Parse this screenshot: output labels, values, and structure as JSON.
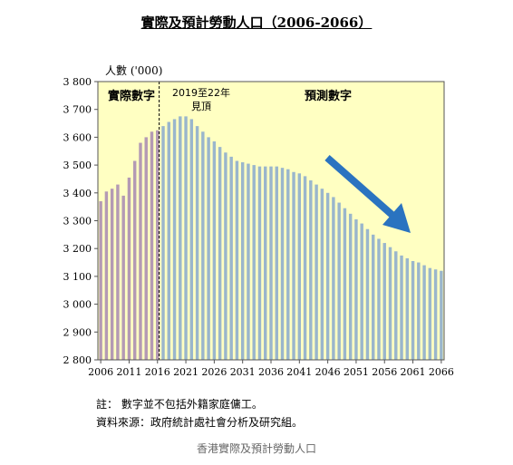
{
  "chart_data": {
    "type": "bar",
    "title": "實際及預計勞動人口（2006-2066）",
    "ylabel": "人數 ('000)",
    "ylim": [
      2800,
      3800
    ],
    "yticks": [
      2800,
      2900,
      3000,
      3100,
      3200,
      3300,
      3400,
      3500,
      3600,
      3700,
      3800
    ],
    "ytick_labels": [
      "2 800",
      "2 900",
      "3 000",
      "3 100",
      "3 200",
      "3 300",
      "3 400",
      "3 500",
      "3 600",
      "3 700",
      "3 800"
    ],
    "xticks": [
      "2006",
      "2011",
      "2016",
      "2021",
      "2026",
      "2031",
      "2036",
      "2041",
      "2046",
      "2051",
      "2056",
      "2061",
      "2066"
    ],
    "x": [
      2006,
      2007,
      2008,
      2009,
      2010,
      2011,
      2012,
      2013,
      2014,
      2015,
      2016,
      2017,
      2018,
      2019,
      2020,
      2021,
      2022,
      2023,
      2024,
      2025,
      2026,
      2027,
      2028,
      2029,
      2030,
      2031,
      2032,
      2033,
      2034,
      2035,
      2036,
      2037,
      2038,
      2039,
      2040,
      2041,
      2042,
      2043,
      2044,
      2045,
      2046,
      2047,
      2048,
      2049,
      2050,
      2051,
      2052,
      2053,
      2054,
      2055,
      2056,
      2057,
      2058,
      2059,
      2060,
      2061,
      2062,
      2063,
      2064,
      2065,
      2066
    ],
    "series": [
      {
        "name": "實際數字",
        "color": "#b49ab4",
        "x": [
          2006,
          2007,
          2008,
          2009,
          2010,
          2011,
          2012,
          2013,
          2014,
          2015,
          2016
        ],
        "values": [
          3370,
          3405,
          3415,
          3430,
          3390,
          3455,
          3515,
          3580,
          3600,
          3620,
          3625
        ]
      },
      {
        "name": "預測數字",
        "color": "#9ab6cc",
        "x": [
          2017,
          2018,
          2019,
          2020,
          2021,
          2022,
          2023,
          2024,
          2025,
          2026,
          2027,
          2028,
          2029,
          2030,
          2031,
          2032,
          2033,
          2034,
          2035,
          2036,
          2037,
          2038,
          2039,
          2040,
          2041,
          2042,
          2043,
          2044,
          2045,
          2046,
          2047,
          2048,
          2049,
          2050,
          2051,
          2052,
          2053,
          2054,
          2055,
          2056,
          2057,
          2058,
          2059,
          2060,
          2061,
          2062,
          2063,
          2064,
          2065,
          2066
        ],
        "values": [
          3640,
          3655,
          3665,
          3675,
          3675,
          3665,
          3640,
          3620,
          3600,
          3585,
          3565,
          3545,
          3530,
          3515,
          3510,
          3505,
          3500,
          3495,
          3495,
          3495,
          3495,
          3490,
          3485,
          3475,
          3470,
          3460,
          3445,
          3430,
          3415,
          3400,
          3385,
          3365,
          3345,
          3325,
          3305,
          3290,
          3270,
          3250,
          3235,
          3220,
          3205,
          3190,
          3175,
          3165,
          3155,
          3150,
          3140,
          3130,
          3125,
          3120
        ]
      }
    ],
    "annotations": {
      "actual_label": "實際數字",
      "projected_label": "預測數字",
      "peak_line1": "2019至22年",
      "peak_line2": "見頂"
    },
    "background_colors": {
      "plot": "#ffffc2",
      "actual_region": "#ffffc2"
    },
    "arrow_color": "#2a73c0"
  },
  "notes": {
    "note": "註：  數字並不包括外籍家庭傭工。",
    "source": "資料來源：政府統計處社會分析及研究組。"
  },
  "caption": "香港實際及預計勞動人口"
}
